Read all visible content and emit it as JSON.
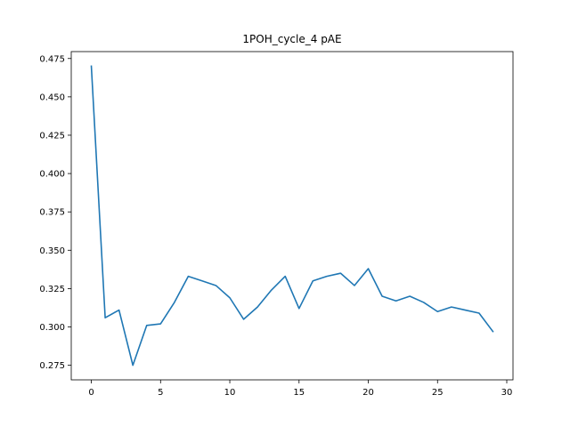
{
  "chart_data": {
    "type": "line",
    "title": "1POH_cycle_4 pAE",
    "xlabel": "",
    "ylabel": "",
    "xlim": [
      -1.45,
      30.45
    ],
    "ylim": [
      0.2655,
      0.4795
    ],
    "xticks": [
      0,
      5,
      10,
      15,
      20,
      25,
      30
    ],
    "xtick_labels": [
      "0",
      "5",
      "10",
      "15",
      "20",
      "25",
      "30"
    ],
    "yticks": [
      0.275,
      0.3,
      0.325,
      0.35,
      0.375,
      0.4,
      0.425,
      0.45,
      0.475
    ],
    "ytick_labels": [
      "0.275",
      "0.300",
      "0.325",
      "0.350",
      "0.375",
      "0.400",
      "0.425",
      "0.450",
      "0.475"
    ],
    "grid": false,
    "series": [
      {
        "color": "#1f77b4",
        "x": [
          0,
          1,
          2,
          3,
          4,
          5,
          6,
          7,
          8,
          9,
          10,
          11,
          12,
          13,
          14,
          15,
          16,
          17,
          18,
          19,
          20,
          21,
          22,
          23,
          24,
          25,
          26,
          27,
          28,
          29
        ],
        "values": [
          0.47,
          0.306,
          0.311,
          0.275,
          0.301,
          0.302,
          0.316,
          0.333,
          0.33,
          0.327,
          0.319,
          0.305,
          0.313,
          0.324,
          0.333,
          0.312,
          0.33,
          0.333,
          0.335,
          0.327,
          0.338,
          0.32,
          0.317,
          0.32,
          0.316,
          0.31,
          0.313,
          0.311,
          0.309,
          0.297
        ]
      }
    ]
  }
}
